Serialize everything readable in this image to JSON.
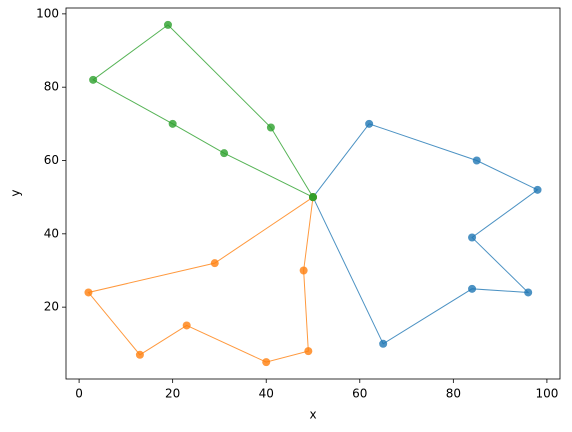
{
  "chart_data": {
    "type": "line",
    "xlabel": "x",
    "ylabel": "y",
    "xlim": [
      -2.8,
      102.8
    ],
    "ylim": [
      0.4,
      101.6
    ],
    "xticks": [
      0,
      20,
      40,
      60,
      80,
      100
    ],
    "yticks": [
      20,
      40,
      60,
      80,
      100
    ],
    "markers": true,
    "alpha": 0.8,
    "series": [
      {
        "color": "#1f77b4",
        "x": [
          50,
          62,
          85,
          98,
          84,
          96,
          84,
          65,
          50
        ],
        "values": [
          50,
          70,
          60,
          52,
          39,
          24,
          25,
          10,
          50
        ]
      },
      {
        "color": "#ff7f0e",
        "x": [
          50,
          29,
          2,
          13,
          23,
          40,
          49,
          48,
          50
        ],
        "values": [
          50,
          32,
          24,
          7,
          15,
          5,
          8,
          30,
          50
        ]
      },
      {
        "color": "#2ca02c",
        "x": [
          50,
          31,
          20,
          3,
          19,
          41,
          50
        ],
        "values": [
          50,
          62,
          70,
          82,
          97,
          69,
          50
        ]
      }
    ]
  }
}
